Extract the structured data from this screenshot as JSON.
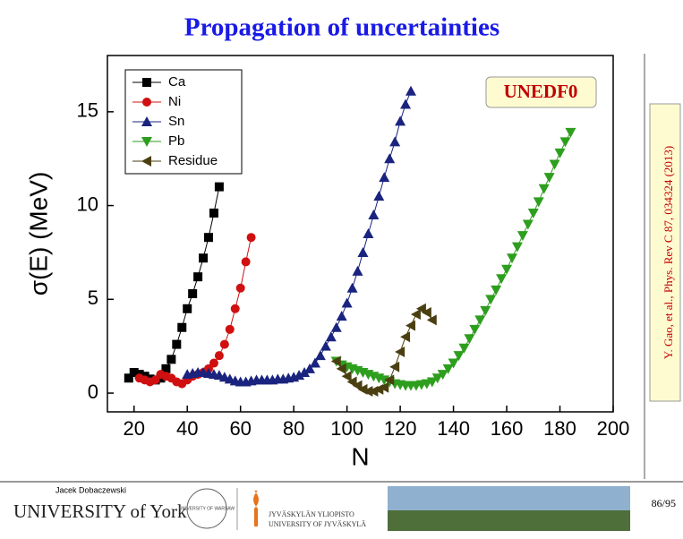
{
  "slide_title": "Propagation of uncertainties",
  "citation": "Y. Gao, et al., Phys. Rev C 87, 034324 (2013)",
  "footer": {
    "author": "Jacek Dobaczewski",
    "university": "UNIVERSITY of York",
    "jyvaskyla": "JYVÄSKYLÄN YLIOPISTO",
    "jyvaskyla_en": "UNIVERSITY OF JYVÄSKYLÄ",
    "warsaw": "UNIVERSITY OF WARSAW",
    "page": "86/95"
  },
  "chart_data": {
    "type": "line",
    "x_label": "N",
    "y_label": "σ(E) (MeV)",
    "annotation": "UNEDF0",
    "xlim": [
      10,
      200
    ],
    "ylim": [
      -1,
      18
    ],
    "xticks": [
      20,
      40,
      60,
      80,
      100,
      120,
      140,
      160,
      180,
      200
    ],
    "yticks": [
      0,
      5,
      10,
      15
    ],
    "legend": "top-left",
    "series": [
      {
        "name": "Ca",
        "color": "#000000",
        "marker": "square",
        "x": [
          18,
          20,
          22,
          24,
          26,
          28,
          30,
          32,
          34,
          36,
          38,
          40,
          42,
          44,
          46,
          48,
          50,
          52
        ],
        "values": [
          0.8,
          1.1,
          1.0,
          0.9,
          0.75,
          0.7,
          0.8,
          1.3,
          1.8,
          2.6,
          3.5,
          4.5,
          5.3,
          6.2,
          7.2,
          8.3,
          9.6,
          11.0
        ]
      },
      {
        "name": "Ni",
        "color": "#d01010",
        "marker": "circle",
        "x": [
          22,
          24,
          26,
          28,
          30,
          32,
          34,
          36,
          38,
          40,
          42,
          44,
          46,
          48,
          50,
          52,
          54,
          56,
          58,
          60,
          62,
          64
        ],
        "values": [
          0.8,
          0.7,
          0.6,
          0.7,
          1.0,
          0.9,
          0.8,
          0.6,
          0.5,
          0.7,
          0.9,
          1.0,
          1.1,
          1.3,
          1.6,
          2.0,
          2.6,
          3.4,
          4.5,
          5.6,
          7.0,
          8.3
        ]
      },
      {
        "name": "Sn",
        "color": "#1a237e",
        "marker": "triangle-up",
        "x": [
          40,
          42,
          44,
          46,
          48,
          50,
          52,
          54,
          56,
          58,
          60,
          62,
          64,
          66,
          68,
          70,
          72,
          74,
          76,
          78,
          80,
          82,
          84,
          86,
          88,
          90,
          92,
          94,
          96,
          98,
          100,
          102,
          104,
          106,
          108,
          110,
          112,
          114,
          116,
          118,
          120,
          122,
          124
        ],
        "values": [
          1.0,
          1.05,
          1.1,
          1.1,
          1.05,
          1.0,
          0.95,
          0.85,
          0.75,
          0.65,
          0.6,
          0.6,
          0.65,
          0.7,
          0.7,
          0.7,
          0.7,
          0.75,
          0.75,
          0.8,
          0.85,
          0.95,
          1.1,
          1.3,
          1.6,
          2.0,
          2.5,
          3.0,
          3.5,
          4.1,
          4.8,
          5.6,
          6.5,
          7.5,
          8.5,
          9.5,
          10.5,
          11.5,
          12.5,
          13.4,
          14.5,
          15.4,
          16.1
        ]
      },
      {
        "name": "Pb",
        "color": "#2e9e1e",
        "marker": "triangle-down",
        "x": [
          96,
          98,
          100,
          102,
          104,
          106,
          108,
          110,
          112,
          114,
          116,
          118,
          120,
          122,
          124,
          126,
          128,
          130,
          132,
          134,
          136,
          138,
          140,
          142,
          144,
          146,
          148,
          150,
          152,
          154,
          156,
          158,
          160,
          162,
          164,
          166,
          168,
          170,
          172,
          174,
          176,
          178,
          180,
          182,
          184
        ],
        "values": [
          1.7,
          1.5,
          1.4,
          1.3,
          1.2,
          1.1,
          1.0,
          0.9,
          0.8,
          0.7,
          0.6,
          0.5,
          0.45,
          0.4,
          0.4,
          0.4,
          0.45,
          0.5,
          0.6,
          0.8,
          1.0,
          1.3,
          1.6,
          2.0,
          2.4,
          2.9,
          3.4,
          3.9,
          4.4,
          5.0,
          5.5,
          6.1,
          6.6,
          7.2,
          7.8,
          8.4,
          9.0,
          9.6,
          10.2,
          10.9,
          11.5,
          12.2,
          12.8,
          13.4,
          13.9
        ]
      },
      {
        "name": "Residue",
        "color": "#4a3f10",
        "marker": "triangle-left",
        "x": [
          96,
          98,
          100,
          102,
          104,
          106,
          108,
          110,
          112,
          114,
          116,
          118,
          120,
          122,
          124,
          126,
          128,
          130,
          132
        ],
        "values": [
          1.7,
          1.3,
          0.9,
          0.6,
          0.4,
          0.2,
          0.1,
          0.1,
          0.2,
          0.3,
          0.7,
          1.4,
          2.2,
          3.0,
          3.6,
          4.2,
          4.5,
          4.3,
          3.9
        ]
      }
    ]
  }
}
